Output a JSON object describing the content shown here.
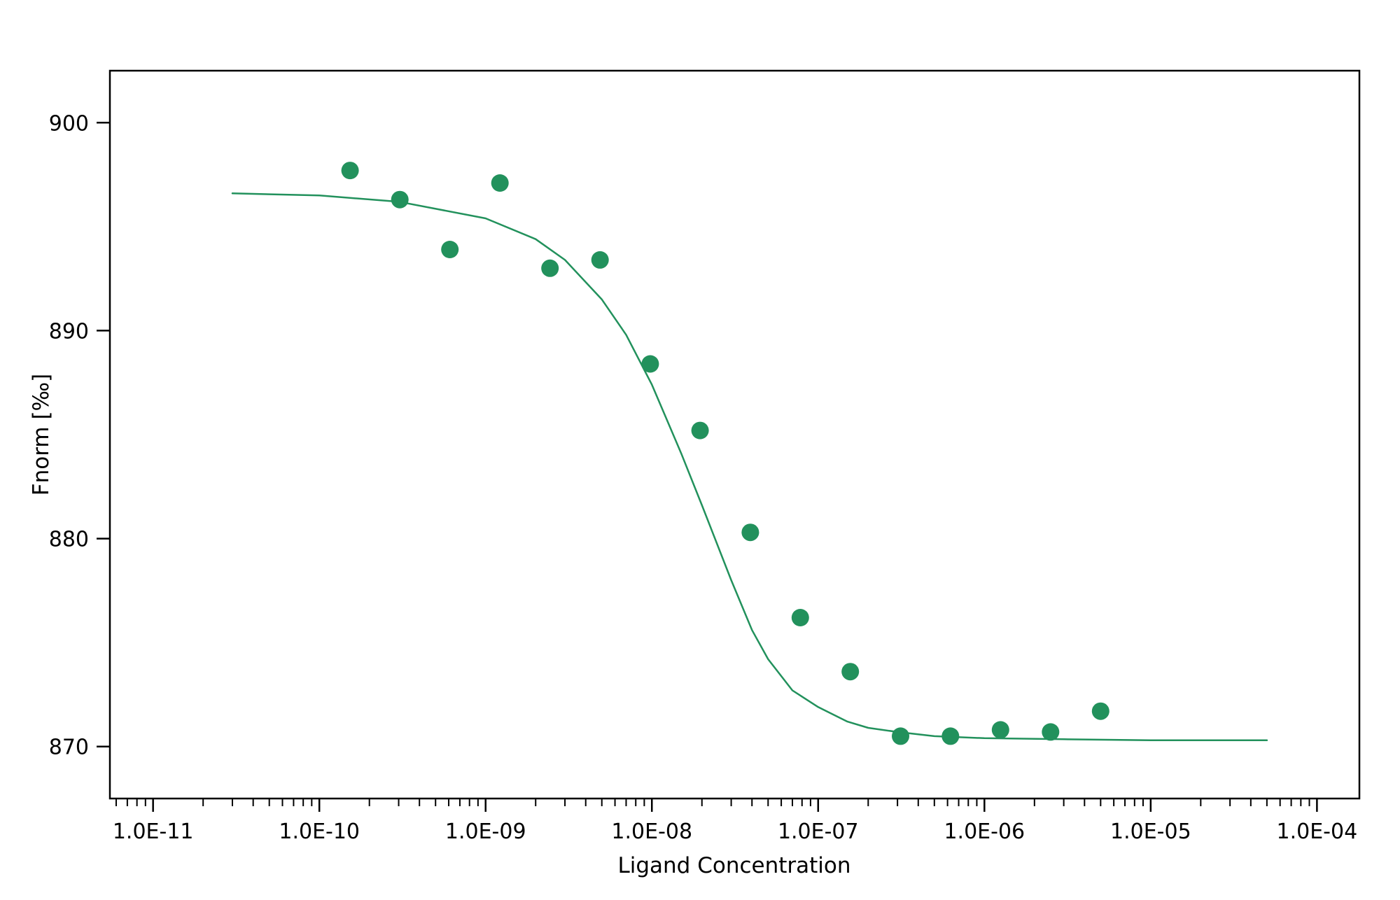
{
  "chart_data": {
    "type": "scatter",
    "title": "",
    "xlabel": "Ligand Concentration",
    "ylabel": "Fnorm [‰]",
    "xscale": "log",
    "xlim": [
      5.5e-12,
      0.00018
    ],
    "ylim": [
      867.5,
      902.5
    ],
    "grid": false,
    "legend": "none",
    "color": "#22915c",
    "x_ticks": [
      1e-11,
      1e-10,
      1e-09,
      1e-08,
      1e-07,
      1e-06,
      1e-05,
      0.0001
    ],
    "x_tick_labels": [
      "1.0E-11",
      "1.0E-10",
      "1.0E-09",
      "1.0E-08",
      "1.0E-07",
      "1.0E-06",
      "1.0E-05",
      "1.0E-04"
    ],
    "y_ticks": [
      870,
      880,
      890,
      900
    ],
    "y_tick_labels": [
      "870",
      "880",
      "890",
      "900"
    ],
    "points": {
      "x": [
        1.53e-10,
        3.05e-10,
        6.1e-10,
        1.22e-09,
        2.44e-09,
        4.88e-09,
        9.77e-09,
        1.95e-08,
        3.91e-08,
        7.81e-08,
        1.56e-07,
        3.13e-07,
        6.25e-07,
        1.25e-06,
        2.5e-06,
        5e-06
      ],
      "y": [
        897.7,
        896.3,
        893.9,
        897.1,
        893.0,
        893.4,
        888.4,
        885.2,
        880.3,
        876.2,
        873.6,
        870.5,
        870.5,
        870.8,
        870.7,
        871.7
      ]
    },
    "fit": {
      "x": [
        3e-11,
        1e-10,
        3e-10,
        1e-09,
        2e-09,
        3e-09,
        5e-09,
        7e-09,
        1e-08,
        1.5e-08,
        2e-08,
        3e-08,
        4e-08,
        5e-08,
        7e-08,
        1e-07,
        1.5e-07,
        2e-07,
        3e-07,
        5e-07,
        1e-06,
        3e-06,
        1e-05,
        5e-05
      ],
      "y": [
        896.6,
        896.5,
        896.2,
        895.4,
        894.4,
        893.4,
        891.5,
        889.8,
        887.4,
        884.1,
        881.6,
        878.0,
        875.6,
        874.2,
        872.7,
        871.9,
        871.2,
        870.9,
        870.7,
        870.5,
        870.4,
        870.35,
        870.3,
        870.3
      ]
    }
  }
}
